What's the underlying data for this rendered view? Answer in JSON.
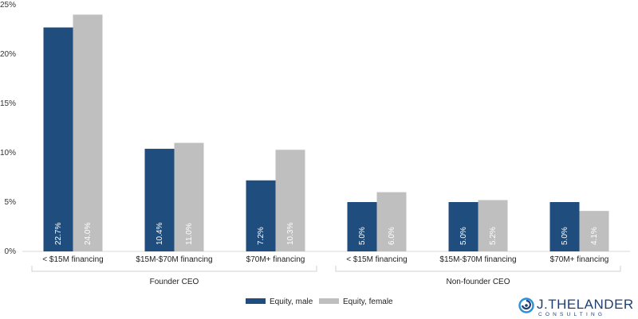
{
  "chart_data": {
    "type": "bar",
    "title": "",
    "xlabel": "",
    "ylabel": "",
    "ylim": [
      0,
      25
    ],
    "y_ticks": [
      "0%",
      "5%",
      "10%",
      "15%",
      "20%",
      "25%"
    ],
    "y_tick_values": [
      0,
      5,
      10,
      15,
      20,
      25
    ],
    "categories": [
      "< $15M financing",
      "$15M-$70M financing",
      "$70M+ financing",
      "< $15M financing",
      "$15M-$70M financing",
      "$70M+ financing"
    ],
    "groups": [
      {
        "label": "Founder CEO",
        "categories": [
          0,
          1,
          2
        ]
      },
      {
        "label": "Non-founder CEO",
        "categories": [
          3,
          4,
          5
        ]
      }
    ],
    "series": [
      {
        "name": "Equity, male",
        "color": "#1f4e7e",
        "values": [
          22.7,
          10.4,
          7.2,
          5.0,
          5.0,
          5.0
        ],
        "labels": [
          "22.7%",
          "10.4%",
          "7.2%",
          "5.0%",
          "5.0%",
          "5.0%"
        ]
      },
      {
        "name": "Equity, female",
        "color": "#bfbfbf",
        "values": [
          24.0,
          11.0,
          10.3,
          6.0,
          5.2,
          4.1
        ],
        "labels": [
          "24.0%",
          "11.0%",
          "10.3%",
          "6.0%",
          "5.2%",
          "4.1%"
        ]
      }
    ],
    "grid": false,
    "legend_position": "bottom-center"
  },
  "brand": {
    "name": "J.THELANDER",
    "tagline": "CONSULTING",
    "logo_icon": "swirl-logo-icon",
    "colors": {
      "primary": "#1f3f6e",
      "accent": "#2f8fd6"
    }
  }
}
